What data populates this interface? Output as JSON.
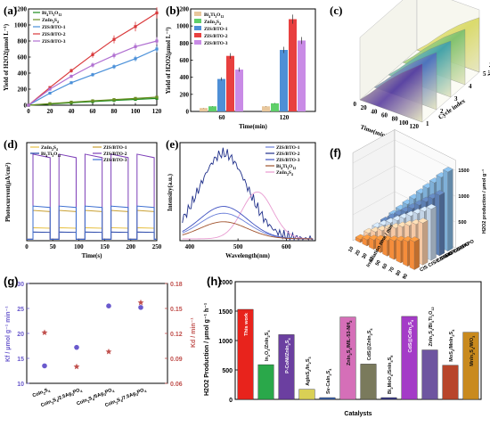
{
  "panels": {
    "a": {
      "label": "(a)"
    },
    "b": {
      "label": "(b)"
    },
    "c": {
      "label": "(c)"
    },
    "d": {
      "label": "(d)"
    },
    "e": {
      "label": "(e)"
    },
    "f": {
      "label": "(f)"
    },
    "g": {
      "label": "(g)"
    },
    "h": {
      "label": "(h)"
    }
  },
  "chart_data": [
    {
      "id": "a",
      "type": "line",
      "ylabel": "Yield of H2O2(μmol L⁻¹)",
      "xlim": [
        0,
        120
      ],
      "ylim": [
        0,
        1200
      ],
      "xticks": [
        0,
        20,
        40,
        60,
        80,
        100,
        120
      ],
      "yticks": [
        0,
        200,
        400,
        600,
        800,
        1000,
        1200
      ],
      "x": [
        0,
        20,
        40,
        60,
        80,
        100,
        120
      ],
      "series": [
        {
          "name": "Bi4Ti3O12",
          "color": "#1a8a1a",
          "values": [
            0,
            15,
            30,
            45,
            60,
            72,
            85
          ]
        },
        {
          "name": "ZnIn2S4",
          "color": "#6b8e23",
          "values": [
            0,
            20,
            38,
            55,
            70,
            85,
            100
          ]
        },
        {
          "name": "ZIS/BTO-1",
          "color": "#4a90d9",
          "values": [
            0,
            150,
            280,
            380,
            480,
            580,
            700
          ]
        },
        {
          "name": "ZIS/BTO-2",
          "color": "#d9383a",
          "values": [
            0,
            220,
            430,
            630,
            820,
            980,
            1150
          ]
        },
        {
          "name": "ZIS/BTO-3",
          "color": "#b06fd1",
          "values": [
            0,
            200,
            360,
            500,
            620,
            730,
            800
          ]
        }
      ]
    },
    {
      "id": "b",
      "type": "bar",
      "xlabel": "Time(min)",
      "ylabel": "Yield of H2O2(μmol L⁻¹)",
      "ylim": [
        0,
        1200
      ],
      "yticks": [
        0,
        200,
        400,
        600,
        800,
        1000,
        1200
      ],
      "categories": [
        "60",
        "120"
      ],
      "series": [
        {
          "name": "Bi4Ti3O12",
          "color": "#e8c79c",
          "values": [
            40,
            60
          ]
        },
        {
          "name": "ZnIn2S4",
          "color": "#5fcf6a",
          "values": [
            60,
            95
          ]
        },
        {
          "name": "ZIS/BTO-1",
          "color": "#4e8fd6",
          "values": [
            380,
            720
          ]
        },
        {
          "name": "ZIS/BTO-2",
          "color": "#e8403f",
          "values": [
            650,
            1080
          ]
        },
        {
          "name": "ZIS/BTO-3",
          "color": "#c98be6",
          "values": [
            490,
            830
          ]
        }
      ]
    },
    {
      "id": "c",
      "type": "area",
      "zlabel": "Yield of H2O2(μmol L⁻¹)",
      "xlabel": "Time(min)",
      "ylabel": "Cycle index",
      "cycles": [
        1,
        2,
        3,
        4,
        5
      ],
      "time": [
        0,
        20,
        40,
        60,
        80,
        100,
        120
      ],
      "values": [
        [
          0,
          200,
          420,
          620,
          800,
          960,
          1120
        ],
        [
          0,
          195,
          410,
          610,
          790,
          950,
          1100
        ],
        [
          0,
          190,
          400,
          600,
          780,
          935,
          1080
        ],
        [
          0,
          185,
          395,
          590,
          770,
          920,
          1065
        ],
        [
          0,
          180,
          390,
          585,
          760,
          910,
          1050
        ]
      ],
      "time_ticks": [
        "0",
        "20",
        "40",
        "60",
        "80",
        "100",
        "120"
      ],
      "cycle_ticks": [
        "1",
        "2",
        "3",
        "4",
        "5"
      ]
    },
    {
      "id": "d",
      "type": "line",
      "xlabel": "Time(s)",
      "ylabel": "Photocurrent(μA/cm²)",
      "xlim": [
        0,
        250
      ],
      "xticks": [
        0,
        50,
        100,
        150,
        200,
        250
      ],
      "series": [
        {
          "name": "ZnIn2S4",
          "color": "#e8c34a",
          "level": 0.45
        },
        {
          "name": "Bi4Ti3O12",
          "color": "#1f3fa6",
          "level": 0.3
        },
        {
          "name": "ZIS/BTO-1",
          "color": "#c9a033",
          "level": 1.05
        },
        {
          "name": "ZIS/BTO-2",
          "color": "#7d3fb8",
          "level": 3.0
        },
        {
          "name": "ZIS/BTO-3",
          "color": "#3d6fd1",
          "level": 1.2
        }
      ]
    },
    {
      "id": "e",
      "type": "line",
      "xlabel": "Wavelength(nm)",
      "ylabel": "Intensity(a.u.)",
      "xlim": [
        380,
        660
      ],
      "xticks": [
        400,
        500,
        600
      ],
      "series": [
        {
          "name": "ZIS/BTO-1",
          "color": "#6a7fd9",
          "peak": 0.3
        },
        {
          "name": "ZIS/BTO-2",
          "color": "#1f2f8a",
          "peak": 1.0
        },
        {
          "name": "ZIS/BTO-3",
          "color": "#3d4fc0",
          "peak": 0.38
        },
        {
          "name": "Bi4Ti3O12",
          "color": "#a0522d",
          "peak": 0.2
        },
        {
          "name": "ZnIn2S4",
          "color": "#e89ad0",
          "peak": 0.55
        }
      ]
    },
    {
      "id": "f",
      "type": "bar",
      "zlabel": "H2O2 production / μmol g⁻¹",
      "xlabel": "Irradiation time / min",
      "zticks": [
        "500",
        "1000",
        "1500"
      ],
      "zlim": [
        0,
        1700
      ],
      "time_ticks": [
        "10",
        "20",
        "30",
        "40",
        "50",
        "60",
        "70",
        "80",
        "90"
      ],
      "series": [
        {
          "name": "CIS",
          "color": "#f58d3b",
          "values": [
            60,
            120,
            180,
            240,
            300,
            360,
            420,
            480,
            540
          ]
        },
        {
          "name": "CIS/2.5APO",
          "color": "#f6c9a5",
          "values": [
            90,
            180,
            270,
            360,
            450,
            540,
            630,
            720,
            810
          ]
        },
        {
          "name": "CIS/5APO",
          "color": "#c3d4e6",
          "values": [
            110,
            220,
            330,
            440,
            550,
            660,
            770,
            880,
            990
          ]
        },
        {
          "name": "CIS/7.5APO",
          "color": "#5d7fb3",
          "values": [
            130,
            260,
            390,
            520,
            650,
            780,
            910,
            1040,
            1170
          ]
        },
        {
          "name": "CIS/5APO",
          "color": "#7fb0d8",
          "values": [
            170,
            340,
            510,
            680,
            850,
            1020,
            1190,
            1360,
            1530
          ]
        }
      ]
    },
    {
      "id": "g",
      "type": "scatter",
      "ylabel": "Kf / μmol g⁻¹ min⁻¹",
      "ylabel_right": "Kd / min⁻¹",
      "categories": [
        "CoIn2S4",
        "CoIn2S4/2.5Ag3PO4",
        "CoIn2S4/5Ag3PO4",
        "CoIn2S4/7.5Ag3PO4"
      ],
      "ylim": [
        10,
        30
      ],
      "yticks": [
        10,
        15,
        20,
        25,
        30
      ],
      "ylim_right": [
        0.06,
        0.18
      ],
      "yticks_right": [
        "0.06",
        "0.09",
        "0.12",
        "0.15",
        "0.18"
      ],
      "series": [
        {
          "name": "Kf",
          "color": "#6a5acd",
          "marker": "circle",
          "values": [
            13.5,
            17.2,
            25.5,
            25.2
          ]
        },
        {
          "name": "Kd",
          "color": "#c0504d",
          "marker": "star",
          "values": [
            0.121,
            0.08,
            0.098,
            0.157
          ]
        }
      ]
    },
    {
      "id": "h",
      "type": "bar",
      "xlabel": "Catalysts",
      "ylabel": "H2O2 Production / μmol g⁻¹ h⁻¹",
      "ylim": [
        0,
        2000
      ],
      "yticks": [
        "0",
        "500",
        "1000",
        "1500",
        "2000"
      ],
      "categories": [
        "This work",
        "In2O3/ZnIn2S4",
        "P-CoNi/ZnIn2S4",
        "AgInS2/In2S3",
        "Sv-CaIn2S4",
        "ZnIn2S4/MIL-53-NH2",
        "CdS@ZnIn2S4",
        "Bi2MoO6/SnIn4S8",
        "CdS@CdIn2S4",
        "ZnIn2S4/Bi4Ti3O12",
        "MoS2/MnIn2S4",
        "MnIn2S4/WO3"
      ],
      "values": [
        1530,
        590,
        1100,
        170,
        30,
        1400,
        600,
        30,
        1410,
        840,
        580,
        1140
      ],
      "colors": [
        "#e8231c",
        "#2aa84a",
        "#6b3fa0",
        "#d9d055",
        "#3a62b0",
        "#d56fb8",
        "#7a7a5c",
        "#3a3a8c",
        "#a43bc7",
        "#6e55a0",
        "#b8452b",
        "#c98a1e"
      ]
    }
  ]
}
